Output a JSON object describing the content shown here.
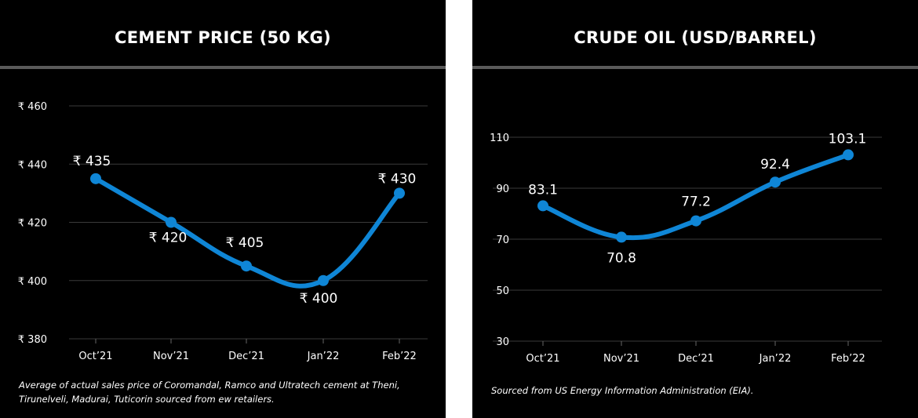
{
  "chart_data": [
    {
      "type": "line",
      "title": "CEMENT PRICE (50 KG)",
      "categories": [
        "Oct’21",
        "Nov’21",
        "Dec’21",
        "Jan’22",
        "Feb’22"
      ],
      "values": [
        435,
        420,
        405,
        400,
        430
      ],
      "data_labels": [
        "₹ 435",
        "₹ 420",
        "₹ 405",
        "₹ 400",
        "₹ 430"
      ],
      "yticks": [
        "₹ 380",
        "₹ 400",
        "₹ 420",
        "₹ 440",
        "₹ 460"
      ],
      "ylim": [
        380,
        460
      ],
      "grid": true,
      "line_color": "#0f86d6",
      "note": "Average of actual sales price of Coromandal, Ramco and Ultratech cement at Theni, Tirunelveli, Madurai, Tuticorin sourced from ew retailers."
    },
    {
      "type": "line",
      "title": "CRUDE OIL (USD/BARREL)",
      "categories": [
        "Oct’21",
        "Nov’21",
        "Dec’21",
        "Jan’22",
        "Feb’22"
      ],
      "values": [
        83.1,
        70.8,
        77.2,
        92.4,
        103.1
      ],
      "data_labels": [
        "83.1",
        "70.8",
        "77.2",
        "92.4",
        "103.1"
      ],
      "yticks": [
        "30",
        "50",
        "70",
        "90",
        "110"
      ],
      "ylim": [
        30,
        110
      ],
      "grid": true,
      "line_color": "#0f86d6",
      "note": "Sourced from US Energy Information Administration (EIA)."
    }
  ]
}
